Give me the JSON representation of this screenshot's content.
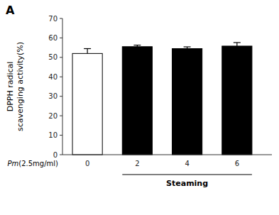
{
  "chart_data": {
    "type": "bar",
    "title": "A",
    "categories": [
      "0",
      "2",
      "4",
      "6"
    ],
    "values": [
      52.0,
      55.5,
      54.5,
      55.8
    ],
    "errors": [
      2.5,
      0.8,
      0.9,
      1.8
    ],
    "colors": [
      "#ffffff",
      "#000000",
      "#000000",
      "#000000"
    ],
    "ylabel": [
      "DPPH radical",
      "scavenging activity(%)"
    ],
    "xlabel": "Pm(2.5mg/ml)",
    "annotations": [
      "Steaming"
    ],
    "ylim": [
      0,
      70
    ],
    "yticks": [
      0,
      10,
      20,
      30,
      40,
      50,
      60,
      70
    ],
    "grid": false
  }
}
